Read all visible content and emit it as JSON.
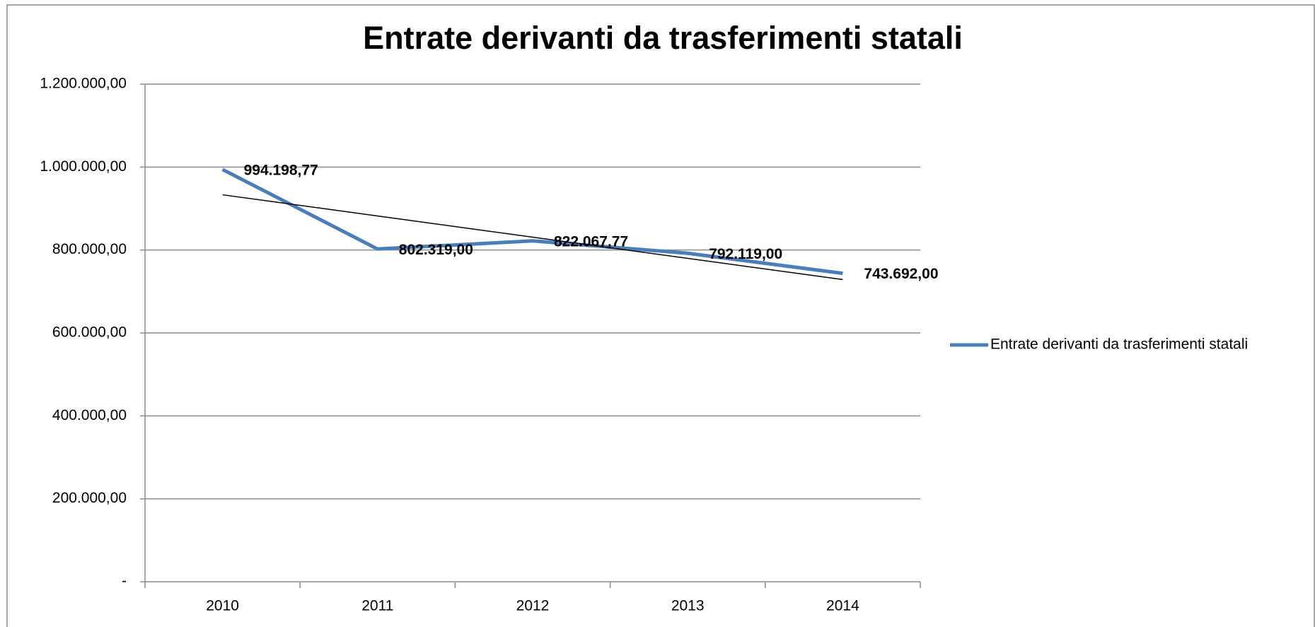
{
  "chart_data": {
    "type": "line",
    "title": "Entrate derivanti da trasferimenti statali",
    "categories": [
      "2010",
      "2011",
      "2012",
      "2013",
      "2014"
    ],
    "series": [
      {
        "name": "Entrate derivanti da trasferimenti statali",
        "color": "#4a7ebb",
        "values": [
          994198.77,
          802319,
          822067.77,
          792119,
          743692
        ],
        "value_labels": [
          "994.198,77",
          "802.319,00",
          "822.067,77",
          "792.119,00",
          "743.692,00"
        ]
      }
    ],
    "ylim": [
      0,
      1200000
    ],
    "yticks": [
      {
        "value": 0,
        "label": "-"
      },
      {
        "value": 200000,
        "label": "200.000,00"
      },
      {
        "value": 400000,
        "label": "400.000,00"
      },
      {
        "value": 600000,
        "label": "600.000,00"
      },
      {
        "value": 800000,
        "label": "800.000,00"
      },
      {
        "value": 1000000,
        "label": "1.000.000,00"
      },
      {
        "value": 1200000,
        "label": "1.200.000,00"
      }
    ],
    "grid": true,
    "trendline": "linear",
    "legend": "right"
  }
}
